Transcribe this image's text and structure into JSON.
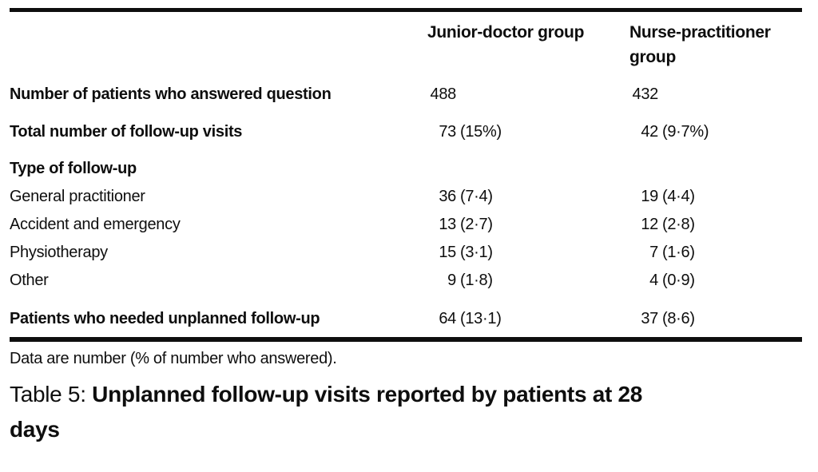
{
  "colors": {
    "text": "#0e0e0e",
    "rule": "#0e0e0e",
    "background": "#ffffff"
  },
  "table": {
    "columns": {
      "label": "",
      "junior": "Junior-doctor group",
      "nurse": "Nurse-practitioner group"
    },
    "rows": [
      {
        "label": "Number of patients who answered question",
        "jd": {
          "n": "488",
          "p": ""
        },
        "np": {
          "n": "432",
          "p": ""
        }
      },
      {
        "label": "Total number of follow-up visits",
        "jd": {
          "n": "73",
          "p": "(15%)"
        },
        "np": {
          "n": "42",
          "p": "(9·7%)"
        }
      },
      {
        "label": "Type of follow-up",
        "jd": {
          "n": "",
          "p": ""
        },
        "np": {
          "n": "",
          "p": ""
        }
      },
      {
        "label": "General practitioner",
        "jd": {
          "n": "36",
          "p": "(7·4)"
        },
        "np": {
          "n": "19",
          "p": "(4·4)"
        }
      },
      {
        "label": "Accident and emergency",
        "jd": {
          "n": "13",
          "p": "(2·7)"
        },
        "np": {
          "n": "12",
          "p": "(2·8)"
        }
      },
      {
        "label": "Physiotherapy",
        "jd": {
          "n": "15",
          "p": "(3·1)"
        },
        "np": {
          "n": "7",
          "p": "(1·6)"
        }
      },
      {
        "label": "Other",
        "jd": {
          "n": "9",
          "p": "(1·8)"
        },
        "np": {
          "n": "4",
          "p": "(0·9)"
        }
      },
      {
        "label": "Patients who needed unplanned follow-up",
        "jd": {
          "n": "64",
          "p": "(13·1)"
        },
        "np": {
          "n": "37",
          "p": "(8·6)"
        }
      }
    ]
  },
  "footnote": "Data are number (% of number who answered).",
  "caption": {
    "prefix": "Table 5:",
    "title_line1": "Unplanned follow-up visits reported by patients at 28",
    "title_line2": "days",
    "full_title": "Unplanned follow-up visits reported by patients at 28 days"
  }
}
